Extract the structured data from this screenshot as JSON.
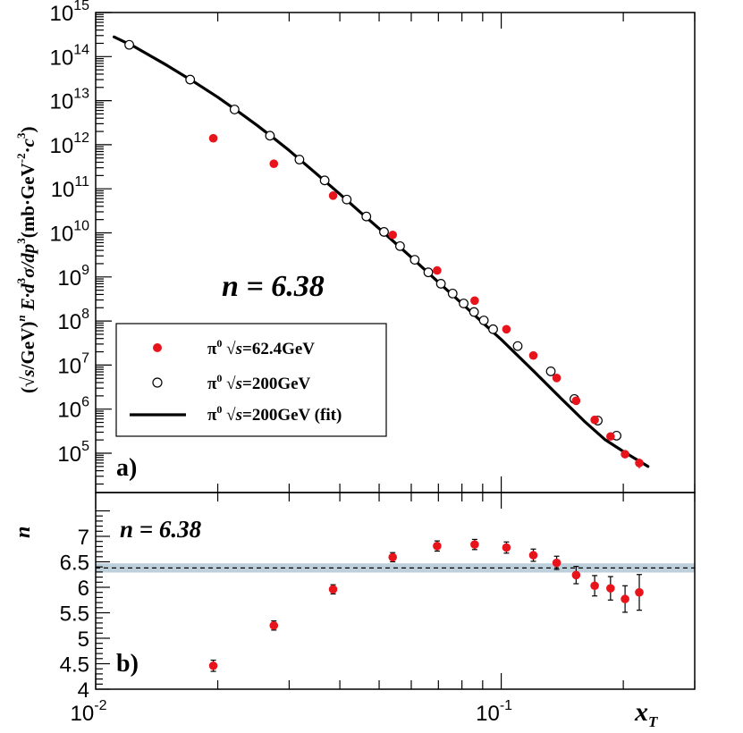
{
  "chart_data": [
    {
      "type": "scatter",
      "panel_label": "a)",
      "annotation": "n = 6.38",
      "xlabel": "x_T",
      "ylabel": "(√s/GeV)^n E·d³σ/dp³ (mb·GeV⁻²·c³)",
      "xscale": "log",
      "yscale": "log",
      "xlim": [
        0.01,
        0.3
      ],
      "ylim": [
        20000,
        1000000000000000
      ],
      "y_tick_labels": [
        "10^5",
        "10^6",
        "10^7",
        "10^8",
        "10^9",
        "10^10",
        "10^11",
        "10^12",
        "10^13",
        "10^14",
        "10^15"
      ],
      "legend": {
        "placement": "center-left",
        "entries": [
          {
            "marker": "filled-circle",
            "color": "#e8141c",
            "label_prefix": "π",
            "label_sup": "0",
            "label_sqrt": "s",
            "label_suffix": "=62.4GeV"
          },
          {
            "marker": "open-circle",
            "color": "#000000",
            "label_prefix": "π",
            "label_sup": "0",
            "label_sqrt": "s",
            "label_suffix": "=200GeV"
          },
          {
            "marker": "line",
            "color": "#000000",
            "label_prefix": "π",
            "label_sup": "0",
            "label_sqrt": "s",
            "label_suffix": "=200GeV (fit)"
          }
        ]
      },
      "series": [
        {
          "name": "π0 √s=62.4GeV",
          "marker": "filled-circle",
          "color": "#e8141c",
          "points": [
            {
              "x": 0.0195,
              "y": 1400000000000.0
            },
            {
              "x": 0.0275,
              "y": 370000000000.0
            },
            {
              "x": 0.0385,
              "y": 70000000000.0
            },
            {
              "x": 0.054,
              "y": 9000000000.0
            },
            {
              "x": 0.0695,
              "y": 1400000000.0
            },
            {
              "x": 0.086,
              "y": 290000000.0
            },
            {
              "x": 0.103,
              "y": 65000000.0
            },
            {
              "x": 0.12,
              "y": 16500000.0
            },
            {
              "x": 0.137,
              "y": 5100000.0
            },
            {
              "x": 0.153,
              "y": 1550000.0
            },
            {
              "x": 0.17,
              "y": 570000.0
            },
            {
              "x": 0.186,
              "y": 240000.0
            },
            {
              "x": 0.202,
              "y": 95000.0,
              "err_lo": 18000.0,
              "err_hi": 18000.0
            },
            {
              "x": 0.219,
              "y": 60000.0,
              "err_lo": 15000.0,
              "err_hi": 16000.0
            }
          ]
        },
        {
          "name": "π0 √s=200GeV",
          "marker": "open-circle",
          "color": "#000000",
          "points": [
            {
              "x": 0.0121,
              "y": 185000000000000.0
            },
            {
              "x": 0.0171,
              "y": 30000000000000.0
            },
            {
              "x": 0.022,
              "y": 6300000000000.0
            },
            {
              "x": 0.0269,
              "y": 1600000000000.0
            },
            {
              "x": 0.0318,
              "y": 460000000000.0
            },
            {
              "x": 0.0367,
              "y": 155000000000.0
            },
            {
              "x": 0.0416,
              "y": 57000000000.0
            },
            {
              "x": 0.0465,
              "y": 23500000000.0
            },
            {
              "x": 0.0514,
              "y": 10500000000.0
            },
            {
              "x": 0.0563,
              "y": 5000000000.0
            },
            {
              "x": 0.0612,
              "y": 2450000000.0
            },
            {
              "x": 0.0661,
              "y": 1270000000.0
            },
            {
              "x": 0.071,
              "y": 700000000.0
            },
            {
              "x": 0.0759,
              "y": 420000000.0
            },
            {
              "x": 0.0808,
              "y": 250000000.0
            },
            {
              "x": 0.0857,
              "y": 160000000.0
            },
            {
              "x": 0.0906,
              "y": 103000000.0
            },
            {
              "x": 0.0955,
              "y": 65000000.0
            },
            {
              "x": 0.1098,
              "y": 27000000.0
            },
            {
              "x": 0.1325,
              "y": 7200000.0
            },
            {
              "x": 0.1515,
              "y": 1700000.0
            },
            {
              "x": 0.173,
              "y": 550000.0
            },
            {
              "x": 0.1925,
              "y": 250000.0
            }
          ]
        },
        {
          "name": "π0 √s=200GeV (fit)",
          "marker": "line",
          "color": "#000000",
          "points": [
            {
              "x": 0.0111,
              "y": 280000000000000.0
            },
            {
              "x": 0.0125,
              "y": 165000000000000.0
            },
            {
              "x": 0.015,
              "y": 63000000000000.0
            },
            {
              "x": 0.0175,
              "y": 26500000000000.0
            },
            {
              "x": 0.02,
              "y": 12000000000000.0
            },
            {
              "x": 0.0225,
              "y": 5600000000000.0
            },
            {
              "x": 0.025,
              "y": 2750000000000.0
            },
            {
              "x": 0.0275,
              "y": 1400000000000.0
            },
            {
              "x": 0.03,
              "y": 740000000000.0
            },
            {
              "x": 0.035,
              "y": 220000000000.0
            },
            {
              "x": 0.04,
              "y": 76000000000.0
            },
            {
              "x": 0.045,
              "y": 29000000000.0
            },
            {
              "x": 0.05,
              "y": 12500000000.0
            },
            {
              "x": 0.055,
              "y": 5700000000.0
            },
            {
              "x": 0.06,
              "y": 2800000000.0
            },
            {
              "x": 0.07,
              "y": 760000000.0
            },
            {
              "x": 0.08,
              "y": 250000000.0
            },
            {
              "x": 0.09,
              "y": 92000000.0
            },
            {
              "x": 0.1,
              "y": 38000000.0
            },
            {
              "x": 0.12,
              "y": 7400000.0
            },
            {
              "x": 0.14,
              "y": 1800000.0
            },
            {
              "x": 0.16,
              "y": 540000.0
            },
            {
              "x": 0.18,
              "y": 205000.0
            },
            {
              "x": 0.2,
              "y": 110000.0
            },
            {
              "x": 0.23,
              "y": 50000.0
            }
          ]
        }
      ]
    },
    {
      "type": "scatter",
      "panel_label": "b)",
      "annotation": "n = 6.38",
      "ylabel": "n",
      "xlabel": "x_T",
      "xscale": "log",
      "xlim": [
        0.01,
        0.3
      ],
      "ylim": [
        4,
        7.5
      ],
      "y_tick_labels": [
        "4",
        "4.5",
        "5",
        "5.5",
        "6",
        "6.5",
        "7"
      ],
      "x_tick_labels": [
        {
          "base": "10",
          "exp": "-2"
        },
        {
          "base": "10",
          "exp": "-1"
        }
      ],
      "reference_line": {
        "y": 6.38,
        "style": "dashed",
        "band": [
          6.29,
          6.47
        ],
        "band_color": "#bccfdb"
      },
      "series": [
        {
          "name": "π0 √s=62.4GeV",
          "marker": "filled-circle",
          "color": "#e8141c",
          "points": [
            {
              "x": 0.0195,
              "y": 4.46,
              "err": 0.11
            },
            {
              "x": 0.0275,
              "y": 5.25,
              "err": 0.09
            },
            {
              "x": 0.0385,
              "y": 5.96,
              "err": 0.09
            },
            {
              "x": 0.054,
              "y": 6.59,
              "err": 0.09
            },
            {
              "x": 0.0695,
              "y": 6.81,
              "err": 0.1
            },
            {
              "x": 0.086,
              "y": 6.84,
              "err": 0.1
            },
            {
              "x": 0.103,
              "y": 6.78,
              "err": 0.11
            },
            {
              "x": 0.12,
              "y": 6.63,
              "err": 0.12
            },
            {
              "x": 0.137,
              "y": 6.48,
              "err": 0.13
            },
            {
              "x": 0.153,
              "y": 6.24,
              "err": 0.17
            },
            {
              "x": 0.17,
              "y": 6.03,
              "err": 0.2
            },
            {
              "x": 0.186,
              "y": 5.98,
              "err": 0.23
            },
            {
              "x": 0.202,
              "y": 5.77,
              "err": 0.26
            },
            {
              "x": 0.219,
              "y": 5.9,
              "err": 0.35
            }
          ]
        }
      ]
    }
  ]
}
